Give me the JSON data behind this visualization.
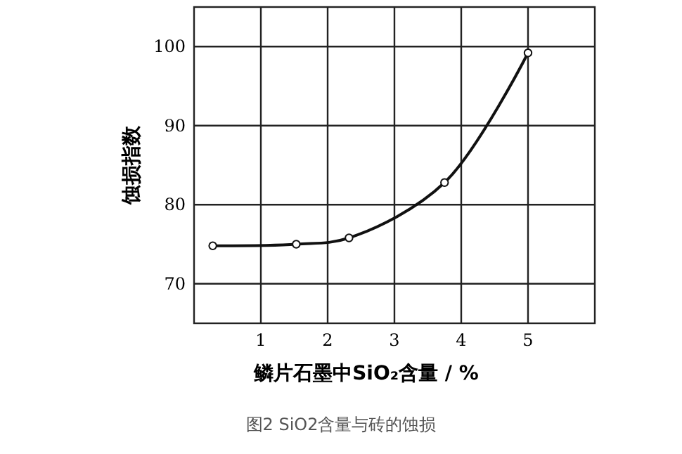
{
  "chart_data": {
    "type": "line",
    "xlabel": "鳞片石墨中SiO₂含量 / %",
    "ylabel": "蚀损指数",
    "annotations": [
      "图2 SiO2含量与砖的蚀损"
    ],
    "x": [
      0.28,
      1.53,
      2.32,
      3.75,
      5.0
    ],
    "series": [
      {
        "color": "#111111",
        "values": [
          74.8,
          75.0,
          75.8,
          82.8,
          99.2
        ]
      }
    ],
    "xlim": [
      0,
      6
    ],
    "ylim": [
      65,
      105
    ],
    "xticks": [
      1,
      2,
      3,
      4,
      5
    ],
    "yticks": [
      70,
      80,
      90,
      100
    ],
    "grid": true,
    "marker": "circle",
    "line_style": "solid"
  }
}
